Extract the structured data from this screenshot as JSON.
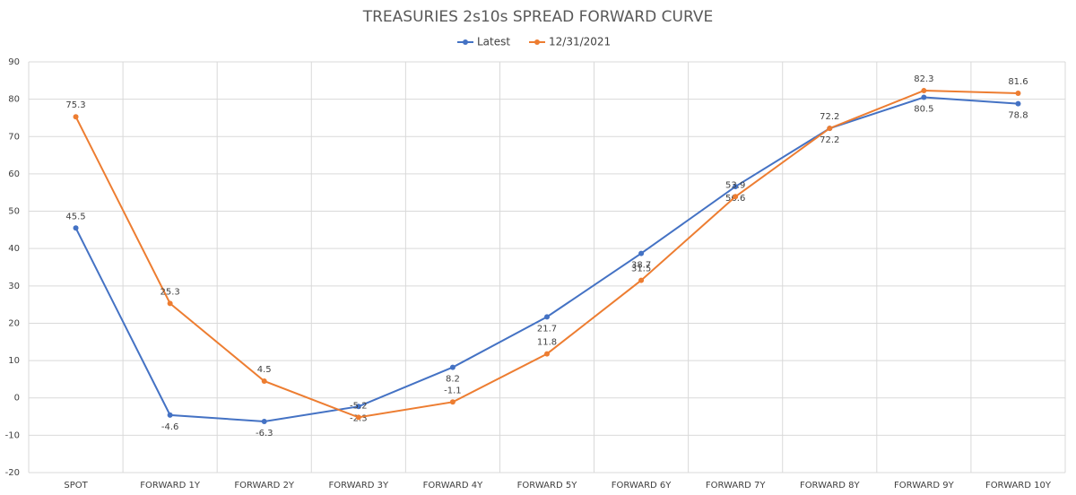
{
  "chart_data": {
    "type": "line",
    "title": "TREASURIES 2s10s SPREAD FORWARD CURVE",
    "categories": [
      "SPOT",
      "FORWARD 1Y",
      "FORWARD 2Y",
      "FORWARD 3Y",
      "FORWARD 4Y",
      "FORWARD 5Y",
      "FORWARD 6Y",
      "FORWARD 7Y",
      "FORWARD 8Y",
      "FORWARD 9Y",
      "FORWARD 10Y"
    ],
    "series": [
      {
        "name": "Latest",
        "color": "#4472c4",
        "values": [
          45.5,
          -4.6,
          -6.3,
          -2.3,
          8.2,
          21.7,
          38.7,
          56.6,
          72.2,
          80.5,
          78.8
        ]
      },
      {
        "name": "12/31/2021",
        "color": "#ed7d31",
        "values": [
          75.3,
          25.3,
          4.5,
          -5.2,
          -1.1,
          11.8,
          31.5,
          53.9,
          72.2,
          82.3,
          81.6
        ]
      }
    ],
    "ylim": [
      -20,
      90
    ],
    "yticks": [
      -20,
      -10,
      0,
      10,
      20,
      30,
      40,
      50,
      60,
      70,
      80,
      90
    ],
    "grid": true
  }
}
